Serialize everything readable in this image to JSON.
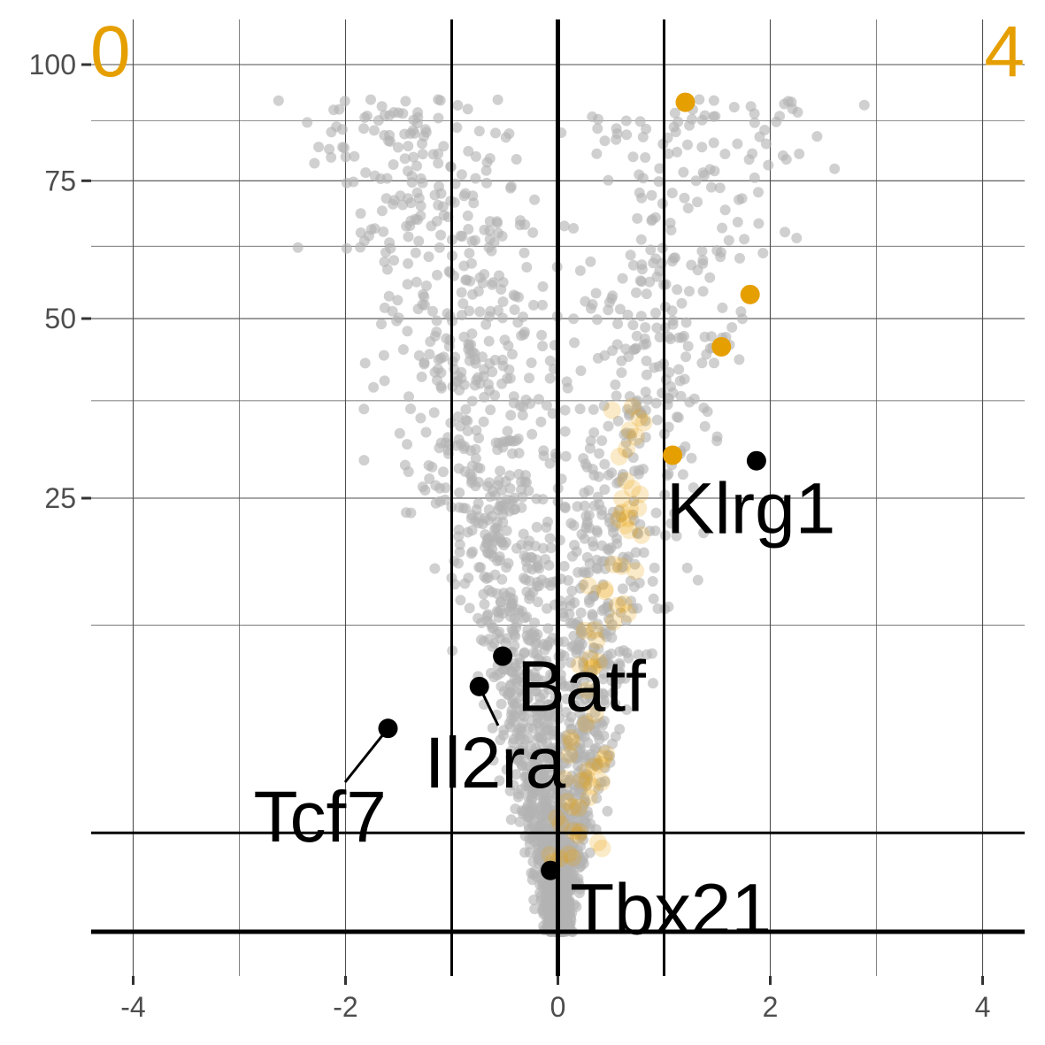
{
  "chart_data": {
    "type": "scatter",
    "title": "",
    "xlabel": "",
    "ylabel": "",
    "xlim": [
      -4.4,
      4.4
    ],
    "y_scale": "sqrt",
    "ylim": [
      0,
      106
    ],
    "x_ticks": [
      -4,
      -2,
      0,
      2,
      4
    ],
    "x_tick_labels": [
      "-4",
      "-2",
      "0",
      "2",
      "4"
    ],
    "y_ticks": [
      25,
      50,
      75,
      100
    ],
    "y_tick_labels": [
      "25",
      "50",
      "75",
      "100"
    ],
    "grid": true,
    "reference_lines": {
      "vertical": [
        -1,
        0,
        1
      ],
      "horizontal": [
        0,
        1.3
      ]
    },
    "corner_counts": {
      "left": "0",
      "right": "4"
    },
    "colors": {
      "background_points": "#b3b3b3",
      "highlight": "#e69f00",
      "labeled": "#000000",
      "grid": "#4d4d4d",
      "tick_text": "#4d4d4d"
    },
    "highlighted_points": [
      {
        "x": 1.2,
        "y": 91.5
      },
      {
        "x": 1.81,
        "y": 54.0
      },
      {
        "x": 1.54,
        "y": 45.5
      },
      {
        "x": 1.08,
        "y": 30.2
      }
    ],
    "labeled_genes": [
      {
        "name": "Klrg1",
        "x": 1.87,
        "y": 29.5
      },
      {
        "name": "Batf",
        "x": -0.52,
        "y": 10.1
      },
      {
        "name": "Il2ra",
        "x": -0.74,
        "y": 8.0
      },
      {
        "name": "Tcf7",
        "x": -1.6,
        "y": 5.5
      },
      {
        "name": "Tbx21",
        "x": -0.07,
        "y": 0.5
      }
    ],
    "background_points_approx_count": 2400
  }
}
